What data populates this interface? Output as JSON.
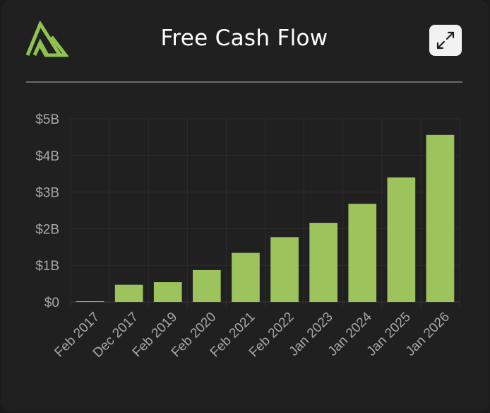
{
  "header": {
    "title": "Free Cash Flow",
    "expand_icon": "expand-arrows-icon",
    "logo_icon": "brand-logo-icon"
  },
  "colors": {
    "bar": "#9dc45c",
    "background": "#202020",
    "grid": "#2c2c2c",
    "text": "#a7a7a7",
    "title": "#ffffff"
  },
  "chart_data": {
    "type": "bar",
    "title": "Free Cash Flow",
    "xlabel": "",
    "ylabel": "",
    "categories": [
      "Feb 2017",
      "Dec 2017",
      "Feb 2019",
      "Feb 2020",
      "Feb 2021",
      "Feb 2022",
      "Jan 2023",
      "Jan 2024",
      "Jan 2025",
      "Jan 2026"
    ],
    "values": [
      0.01,
      0.47,
      0.54,
      0.87,
      1.34,
      1.77,
      2.16,
      2.68,
      3.4,
      4.56
    ],
    "value_unit": "billion USD",
    "ylim": [
      0,
      5
    ],
    "yticks": [
      0,
      1,
      2,
      3,
      4,
      5
    ],
    "ytick_labels": [
      "$0",
      "$1B",
      "$2B",
      "$3B",
      "$4B",
      "$5B"
    ],
    "grid": true,
    "legend": "none"
  }
}
